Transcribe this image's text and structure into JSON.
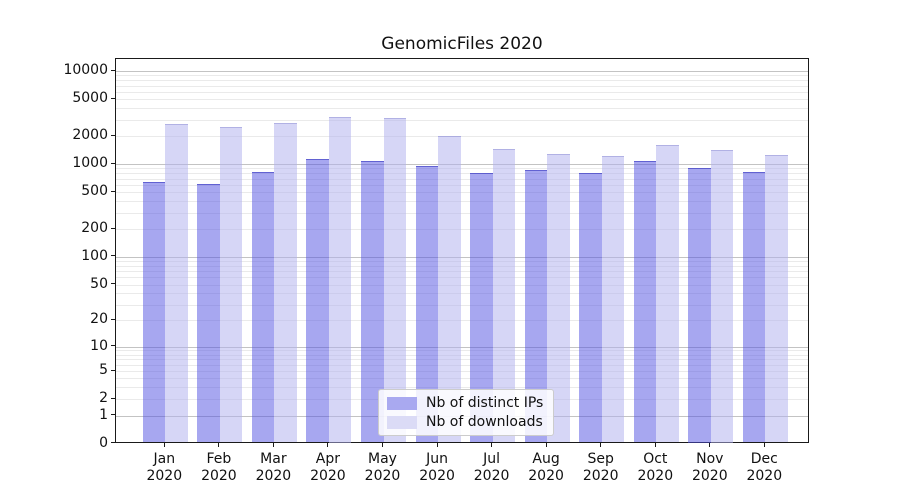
{
  "chart_data": {
    "type": "bar",
    "title": "GenomicFiles 2020",
    "categories": [
      "Jan 2020",
      "Feb 2020",
      "Mar 2020",
      "Apr 2020",
      "May 2020",
      "Jun 2020",
      "Jul 2020",
      "Aug 2020",
      "Sep 2020",
      "Oct 2020",
      "Nov 2020",
      "Dec 2020"
    ],
    "series": [
      {
        "name": "Nb of distinct IPs",
        "color": "#a9a9f0",
        "values": [
          650,
          610,
          830,
          1140,
          1080,
          950,
          810,
          870,
          795,
          1070,
          910,
          815
        ]
      },
      {
        "name": "Nb of downloads",
        "color": "#dbdbf6",
        "values": [
          2730,
          2520,
          2800,
          3250,
          3100,
          2030,
          1440,
          1290,
          1230,
          1620,
          1420,
          1250
        ]
      }
    ],
    "xlabel": "",
    "ylabel": "",
    "y_scale": "log(value+1)",
    "ylim": [
      0,
      13000
    ],
    "y_ticks": [
      10000,
      5000,
      2000,
      1000,
      500,
      200,
      100,
      50,
      20,
      10,
      5,
      2,
      1,
      0
    ],
    "grid": "horizontal, minor and major, drawn over bars",
    "legend_position": "lower center"
  },
  "colors": {
    "bar_distinct_ips": "#a9a9f0",
    "bar_downloads": "#dbdbf6",
    "grid_major": "#c3c3c3",
    "grid_minor": "#eaeaea",
    "spine": "#1a1a1a"
  }
}
